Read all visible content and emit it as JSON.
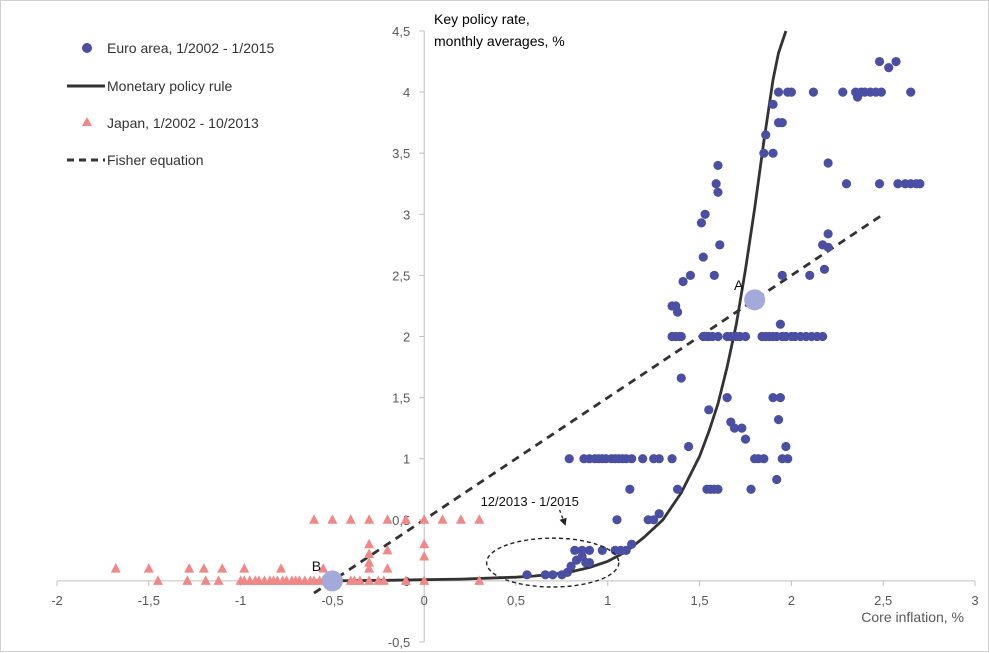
{
  "chart_data": {
    "type": "scatter",
    "title": "",
    "xlabel": "Core inflation, %",
    "ylabel_lines": [
      "Key policy rate,",
      "monthly averages, %"
    ],
    "xlim": [
      -2,
      3
    ],
    "ylim": [
      -0.5,
      4.5
    ],
    "xticks": [
      -2,
      -1.5,
      -1,
      -0.5,
      0,
      0.5,
      1,
      1.5,
      2,
      2.5,
      3
    ],
    "xtick_labels": [
      "-2",
      "-1,5",
      "-1",
      "-0,5",
      "0",
      "0,5",
      "1",
      "1,5",
      "2",
      "2,5",
      "3"
    ],
    "yticks": [
      -0.5,
      0,
      0.5,
      1,
      1.5,
      2,
      2.5,
      3,
      3.5,
      4,
      4.5
    ],
    "ytick_labels": [
      "-0,5",
      "0",
      "0,5",
      "1",
      "1,5",
      "2",
      "2,5",
      "3",
      "3,5",
      "4",
      "4,5"
    ],
    "grid": false,
    "legend_position": "top-left",
    "series": [
      {
        "name": "Euro area, 1/2002 - 1/2015",
        "kind": "scatter",
        "marker": "circle",
        "color": "#4a4fa3",
        "points": [
          [
            0.56,
            0.05
          ],
          [
            0.66,
            0.05
          ],
          [
            0.7,
            0.05
          ],
          [
            0.75,
            0.05
          ],
          [
            0.78,
            0.07
          ],
          [
            0.8,
            0.12
          ],
          [
            0.83,
            0.17
          ],
          [
            0.86,
            0.2
          ],
          [
            0.88,
            0.15
          ],
          [
            0.9,
            0.15
          ],
          [
            0.82,
            0.25
          ],
          [
            0.86,
            0.25
          ],
          [
            0.9,
            0.25
          ],
          [
            0.97,
            0.25
          ],
          [
            1.04,
            0.25
          ],
          [
            1.07,
            0.25
          ],
          [
            1.1,
            0.25
          ],
          [
            1.13,
            0.3
          ],
          [
            1.05,
            0.5
          ],
          [
            1.22,
            0.5
          ],
          [
            1.25,
            0.5
          ],
          [
            1.28,
            0.55
          ],
          [
            1.12,
            0.75
          ],
          [
            1.38,
            0.75
          ],
          [
            1.54,
            0.75
          ],
          [
            1.56,
            0.75
          ],
          [
            1.58,
            0.75
          ],
          [
            1.6,
            0.75
          ],
          [
            1.78,
            0.75
          ],
          [
            1.92,
            0.83
          ],
          [
            0.79,
            1.0
          ],
          [
            0.87,
            1.0
          ],
          [
            0.9,
            1.0
          ],
          [
            0.93,
            1.0
          ],
          [
            0.95,
            1.0
          ],
          [
            0.97,
            1.0
          ],
          [
            0.99,
            1.0
          ],
          [
            1.02,
            1.0
          ],
          [
            1.04,
            1.0
          ],
          [
            1.06,
            1.0
          ],
          [
            1.08,
            1.0
          ],
          [
            1.1,
            1.0
          ],
          [
            1.13,
            1.0
          ],
          [
            1.19,
            1.0
          ],
          [
            1.25,
            1.0
          ],
          [
            1.28,
            1.0
          ],
          [
            1.35,
            1.0
          ],
          [
            1.8,
            1.0
          ],
          [
            1.82,
            1.0
          ],
          [
            1.85,
            1.0
          ],
          [
            1.95,
            1.0
          ],
          [
            1.98,
            1.0
          ],
          [
            1.97,
            1.1
          ],
          [
            1.44,
            1.1
          ],
          [
            1.75,
            1.16
          ],
          [
            1.69,
            1.25
          ],
          [
            1.73,
            1.25
          ],
          [
            1.67,
            1.3
          ],
          [
            1.55,
            1.4
          ],
          [
            1.65,
            1.5
          ],
          [
            1.9,
            1.5
          ],
          [
            1.94,
            1.5
          ],
          [
            1.93,
            1.32
          ],
          [
            1.4,
            1.66
          ],
          [
            1.35,
            2.0
          ],
          [
            1.37,
            2.0
          ],
          [
            1.39,
            2.0
          ],
          [
            1.4,
            2.0
          ],
          [
            1.52,
            2.0
          ],
          [
            1.54,
            2.0
          ],
          [
            1.55,
            2.0
          ],
          [
            1.57,
            2.0
          ],
          [
            1.6,
            2.0
          ],
          [
            1.65,
            2.0
          ],
          [
            1.67,
            2.0
          ],
          [
            1.7,
            2.0
          ],
          [
            1.72,
            2.0
          ],
          [
            1.75,
            2.0
          ],
          [
            1.84,
            2.0
          ],
          [
            1.86,
            2.0
          ],
          [
            1.88,
            2.0
          ],
          [
            1.9,
            2.0
          ],
          [
            1.92,
            2.0
          ],
          [
            1.95,
            2.0
          ],
          [
            1.97,
            2.0
          ],
          [
            2.0,
            2.0
          ],
          [
            2.02,
            2.0
          ],
          [
            2.05,
            2.0
          ],
          [
            2.08,
            2.0
          ],
          [
            2.11,
            2.0
          ],
          [
            2.14,
            2.0
          ],
          [
            2.17,
            2.0
          ],
          [
            1.94,
            2.1
          ],
          [
            1.35,
            2.25
          ],
          [
            1.37,
            2.25
          ],
          [
            1.38,
            2.2
          ],
          [
            1.41,
            2.45
          ],
          [
            1.45,
            2.5
          ],
          [
            1.58,
            2.5
          ],
          [
            1.95,
            2.5
          ],
          [
            2.18,
            2.55
          ],
          [
            2.1,
            2.5
          ],
          [
            2.2,
            2.84
          ],
          [
            2.17,
            2.75
          ],
          [
            2.2,
            2.73
          ],
          [
            1.61,
            2.75
          ],
          [
            1.52,
            2.65
          ],
          [
            1.51,
            2.93
          ],
          [
            1.53,
            3.0
          ],
          [
            1.59,
            3.25
          ],
          [
            1.6,
            3.18
          ],
          [
            1.6,
            3.4
          ],
          [
            2.2,
            3.42
          ],
          [
            2.3,
            3.25
          ],
          [
            2.48,
            3.25
          ],
          [
            2.58,
            3.25
          ],
          [
            2.62,
            3.25
          ],
          [
            2.65,
            3.25
          ],
          [
            2.68,
            3.25
          ],
          [
            2.7,
            3.25
          ],
          [
            1.85,
            3.5
          ],
          [
            1.9,
            3.5
          ],
          [
            1.86,
            3.65
          ],
          [
            1.93,
            3.75
          ],
          [
            1.95,
            3.75
          ],
          [
            1.9,
            3.9
          ],
          [
            1.93,
            4.0
          ],
          [
            1.98,
            4.0
          ],
          [
            2.0,
            4.0
          ],
          [
            2.12,
            4.0
          ],
          [
            2.28,
            4.0
          ],
          [
            2.35,
            4.0
          ],
          [
            2.38,
            4.0
          ],
          [
            2.4,
            4.0
          ],
          [
            2.43,
            4.0
          ],
          [
            2.46,
            4.0
          ],
          [
            2.49,
            4.0
          ],
          [
            2.65,
            4.0
          ],
          [
            2.36,
            3.96
          ],
          [
            2.48,
            4.25
          ],
          [
            2.53,
            4.2
          ],
          [
            2.57,
            4.25
          ]
        ]
      },
      {
        "name": "Monetary policy rule",
        "kind": "line",
        "style": "solid",
        "color": "#333333",
        "points": [
          [
            -0.6,
            0.0
          ],
          [
            -0.4,
            0.002
          ],
          [
            -0.2,
            0.005
          ],
          [
            0.0,
            0.01
          ],
          [
            0.2,
            0.015
          ],
          [
            0.4,
            0.025
          ],
          [
            0.5,
            0.03
          ],
          [
            0.6,
            0.04
          ],
          [
            0.7,
            0.055
          ],
          [
            0.8,
            0.075
          ],
          [
            0.9,
            0.11
          ],
          [
            1.0,
            0.16
          ],
          [
            1.1,
            0.24
          ],
          [
            1.2,
            0.36
          ],
          [
            1.3,
            0.5
          ],
          [
            1.4,
            0.72
          ],
          [
            1.5,
            1.02
          ],
          [
            1.55,
            1.22
          ],
          [
            1.6,
            1.45
          ],
          [
            1.65,
            1.75
          ],
          [
            1.7,
            2.1
          ],
          [
            1.75,
            2.55
          ],
          [
            1.8,
            3.05
          ],
          [
            1.85,
            3.6
          ],
          [
            1.9,
            4.1
          ],
          [
            1.93,
            4.32
          ],
          [
            1.97,
            4.5
          ]
        ]
      },
      {
        "name": "Japan, 1/2002 - 10/2013",
        "kind": "scatter",
        "marker": "triangle",
        "color": "#f08888",
        "points": [
          [
            -1.68,
            0.1
          ],
          [
            -1.5,
            0.1
          ],
          [
            -1.28,
            0.1
          ],
          [
            -1.2,
            0.1
          ],
          [
            -1.1,
            0.1
          ],
          [
            -0.98,
            0.1
          ],
          [
            -0.78,
            0.1
          ],
          [
            -0.55,
            0.1
          ],
          [
            -0.3,
            0.1
          ],
          [
            -0.2,
            0.1
          ],
          [
            -1.45,
            0.0
          ],
          [
            -1.29,
            0.0
          ],
          [
            -1.19,
            0.0
          ],
          [
            -1.12,
            0.0
          ],
          [
            -1.0,
            0.0
          ],
          [
            -0.98,
            0.0
          ],
          [
            -0.95,
            0.0
          ],
          [
            -0.92,
            0.0
          ],
          [
            -0.9,
            0.0
          ],
          [
            -0.87,
            0.0
          ],
          [
            -0.84,
            0.0
          ],
          [
            -0.82,
            0.0
          ],
          [
            -0.8,
            0.0
          ],
          [
            -0.77,
            0.0
          ],
          [
            -0.75,
            0.0
          ],
          [
            -0.72,
            0.0
          ],
          [
            -0.7,
            0.0
          ],
          [
            -0.68,
            0.0
          ],
          [
            -0.65,
            0.0
          ],
          [
            -0.62,
            0.0
          ],
          [
            -0.6,
            0.0
          ],
          [
            -0.57,
            0.0
          ],
          [
            -0.55,
            0.0
          ],
          [
            -0.52,
            0.0
          ],
          [
            -0.4,
            0.0
          ],
          [
            -0.38,
            0.0
          ],
          [
            -0.35,
            0.0
          ],
          [
            -0.3,
            0.0
          ],
          [
            -0.25,
            0.0
          ],
          [
            -0.22,
            0.0
          ],
          [
            -0.1,
            0.0
          ],
          [
            0.0,
            0.0
          ],
          [
            0.3,
            0.0
          ],
          [
            -0.3,
            0.15
          ],
          [
            -0.3,
            0.3
          ],
          [
            -0.2,
            0.25
          ],
          [
            0.0,
            0.2
          ],
          [
            0.0,
            0.3
          ],
          [
            -0.3,
            0.22
          ],
          [
            -0.6,
            0.5
          ],
          [
            -0.5,
            0.5
          ],
          [
            -0.4,
            0.5
          ],
          [
            -0.3,
            0.5
          ],
          [
            -0.2,
            0.5
          ],
          [
            -0.1,
            0.5
          ],
          [
            0.0,
            0.5
          ],
          [
            0.1,
            0.5
          ],
          [
            0.2,
            0.5
          ],
          [
            0.3,
            0.5
          ]
        ]
      },
      {
        "name": "Fisher equation",
        "kind": "line",
        "style": "dashed",
        "color": "#333333",
        "points": [
          [
            -0.6,
            -0.1
          ],
          [
            2.5,
            3.0
          ]
        ]
      }
    ],
    "highlight_points": [
      {
        "label": "A",
        "x": 1.8,
        "y": 2.3,
        "color": "#a3a9d9"
      },
      {
        "label": "B",
        "x": -0.5,
        "y": 0.0,
        "color": "#a3a9d9"
      }
    ],
    "annotations": [
      {
        "text": "12/2013 - 1/2015",
        "shape": "ellipse",
        "center": [
          0.7,
          0.15
        ],
        "half_width": 0.36,
        "half_height": 0.2,
        "arrow_to": [
          0.77,
          0.45
        ]
      }
    ]
  }
}
